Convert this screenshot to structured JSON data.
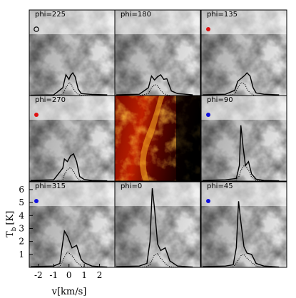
{
  "chart_data": {
    "type": "line",
    "layout": "3x3 grid of panels; center panel is a false-color image (black-red-orange-yellow); the other 8 panels show a grayscale column-density map with a brightness-temperature spectrum overlay (solid = total, dotted = component)",
    "xlabel": "v[km/s]",
    "ylabel_main": "T",
    "ylabel_sub": "b",
    "ylabel_unit": "[K]",
    "xlim": [
      -2.6,
      3.0
    ],
    "ylim": [
      0,
      6.6
    ],
    "xticks": [
      "-2",
      "-1",
      "0",
      "1",
      "2"
    ],
    "yticks": [
      "1",
      "2",
      "3",
      "4",
      "5",
      "6"
    ],
    "colors": {
      "grey_map": "#7a7a7a",
      "center_dark": "#000000",
      "center_mid": "#c01800",
      "center_bright": "#ffd040",
      "marker_red": "#e01010",
      "marker_blue": "#1010e0"
    },
    "panels": [
      {
        "label": "phi=225",
        "marker": "open-black",
        "x": [
          -2.5,
          -1.0,
          -0.4,
          -0.2,
          0.0,
          0.1,
          0.25,
          0.4,
          0.6,
          0.8,
          1.5,
          2.5
        ],
        "total": [
          0.02,
          0.05,
          0.6,
          1.6,
          1.25,
          1.55,
          1.75,
          1.45,
          0.5,
          0.15,
          0.08,
          0.05
        ],
        "component": [
          0,
          0,
          0.1,
          0.6,
          1.0,
          0.95,
          0.6,
          0.3,
          0.1,
          0.03,
          0,
          0
        ]
      },
      {
        "label": "phi=180",
        "marker": "none",
        "x": [
          -2.5,
          -1.0,
          -0.4,
          -0.2,
          0.0,
          0.2,
          0.4,
          0.6,
          0.8,
          1.1,
          1.5,
          2.5
        ],
        "total": [
          0.05,
          0.1,
          0.6,
          1.5,
          1.2,
          1.45,
          1.6,
          1.25,
          1.3,
          0.35,
          0.15,
          0.05
        ],
        "component": [
          0,
          0,
          0.15,
          0.6,
          0.85,
          0.75,
          0.4,
          0.15,
          0.05,
          0,
          0,
          0
        ]
      },
      {
        "label": "phi=135",
        "marker": "red",
        "x": [
          -2.5,
          -1.0,
          -0.4,
          -0.2,
          0.0,
          0.25,
          0.4,
          0.6,
          0.8,
          1.0,
          1.5,
          2.5
        ],
        "total": [
          0.05,
          0.1,
          0.4,
          1.1,
          1.3,
          1.55,
          1.75,
          1.5,
          0.6,
          0.2,
          0.1,
          0.05
        ],
        "component": [
          0,
          0,
          0.1,
          0.6,
          1.0,
          0.9,
          0.5,
          0.2,
          0.05,
          0,
          0,
          0
        ]
      },
      {
        "label": "phi=270",
        "marker": "red",
        "x": [
          -2.5,
          -1.0,
          -0.4,
          -0.3,
          -0.1,
          0.1,
          0.3,
          0.5,
          0.7,
          1.0,
          1.5,
          2.5
        ],
        "total": [
          0.05,
          0.1,
          1.0,
          1.7,
          1.5,
          1.95,
          2.1,
          1.5,
          0.35,
          0.12,
          0.05,
          0.02
        ],
        "component": [
          0,
          0,
          0.1,
          0.5,
          0.9,
          1.05,
          0.75,
          0.3,
          0.05,
          0,
          0,
          0
        ]
      },
      {
        "label": "phi=90",
        "marker": "blue",
        "x": [
          -2.5,
          -1.0,
          -0.3,
          -0.1,
          0.0,
          0.15,
          0.3,
          0.5,
          0.7,
          1.0,
          1.5,
          2.5
        ],
        "total": [
          0.05,
          0.1,
          0.2,
          1.2,
          4.3,
          2.6,
          1.2,
          1.5,
          0.55,
          0.15,
          0.05,
          0.02
        ],
        "component": [
          0,
          0,
          0.05,
          0.4,
          0.8,
          1.15,
          1.2,
          0.85,
          0.3,
          0.05,
          0,
          0
        ]
      },
      {
        "label": "phi=315",
        "marker": "blue",
        "x": [
          -2.5,
          -1.0,
          -0.6,
          -0.3,
          -0.1,
          0.2,
          0.5,
          0.8,
          1.0,
          1.5,
          2.0,
          2.5
        ],
        "total": [
          0.05,
          0.1,
          0.3,
          2.8,
          2.4,
          1.5,
          1.7,
          0.6,
          0.35,
          0.1,
          0.05,
          0.02
        ],
        "component": [
          0,
          0,
          0.05,
          0.8,
          1.2,
          0.9,
          0.4,
          0.1,
          0.03,
          0,
          0,
          0
        ]
      },
      {
        "label": "phi=0",
        "marker": "none",
        "x": [
          -2.5,
          -1.0,
          -0.5,
          -0.3,
          -0.15,
          0.0,
          0.2,
          0.4,
          0.7,
          1.0,
          1.5,
          2.5
        ],
        "total": [
          0.05,
          0.1,
          0.3,
          2.0,
          6.1,
          4.5,
          1.8,
          1.3,
          1.5,
          0.5,
          0.1,
          0.02
        ],
        "component": [
          0,
          0,
          0.05,
          0.2,
          0.6,
          1.0,
          1.05,
          0.7,
          0.3,
          0.05,
          0,
          0
        ]
      },
      {
        "label": "phi=45",
        "marker": "blue",
        "x": [
          -2.5,
          -1.0,
          -0.5,
          -0.3,
          -0.15,
          0.0,
          0.2,
          0.4,
          0.7,
          1.0,
          1.5,
          2.5
        ],
        "total": [
          0.05,
          0.1,
          0.2,
          1.5,
          5.1,
          3.5,
          1.6,
          1.1,
          1.0,
          0.3,
          0.1,
          0.02
        ],
        "component": [
          0,
          0,
          0.05,
          0.3,
          0.6,
          0.9,
          1.0,
          0.7,
          0.4,
          0.1,
          0.02,
          0
        ]
      }
    ]
  }
}
